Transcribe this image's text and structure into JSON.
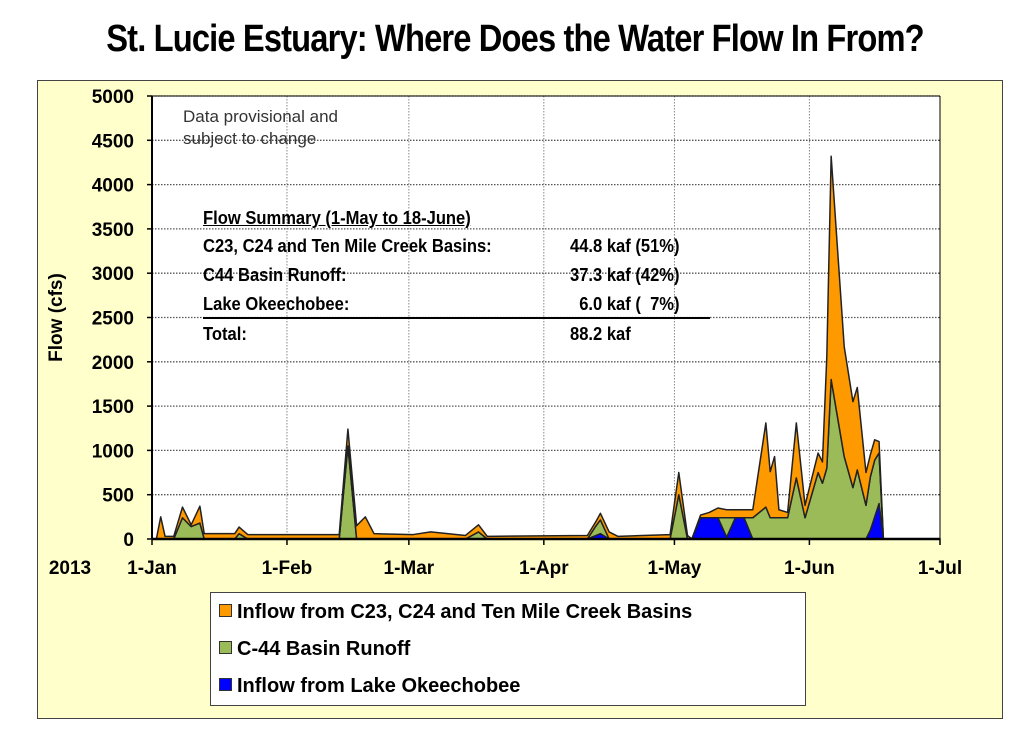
{
  "title": "St. Lucie Estuary: Where Does the Water Flow In From?",
  "note": [
    "Data provisional and",
    "subject to change"
  ],
  "summary": {
    "heading": "Flow Summary (1-May to 18-June)",
    "rows": [
      {
        "label": "C23, C24 and Ten Mile Creek Basins:",
        "value": "44.8 kaf (51%)"
      },
      {
        "label": "C44 Basin Runoff:",
        "value": "37.3 kaf (42%)"
      },
      {
        "label": "Lake Okeechobee:",
        "value": "  6.0 kaf (  7%)"
      },
      {
        "label": "Total:",
        "value": "88.2 kaf"
      }
    ]
  },
  "chart_data": {
    "type": "area",
    "stacked": true,
    "title": "St. Lucie Estuary: Where Does the Water Flow In From?",
    "xlabel": "2013",
    "ylabel": "Flow (cfs)",
    "ylim": [
      0,
      5000
    ],
    "yticks": [
      "0",
      "500",
      "1000",
      "1500",
      "2000",
      "2500",
      "3000",
      "3500",
      "4000",
      "4500",
      "5000"
    ],
    "xticks": [
      {
        "date": "2013-01-01",
        "label": "1-Jan"
      },
      {
        "date": "2013-02-01",
        "label": "1-Feb"
      },
      {
        "date": "2013-03-01",
        "label": "1-Mar"
      },
      {
        "date": "2013-04-01",
        "label": "1-Apr"
      },
      {
        "date": "2013-05-01",
        "label": "1-May"
      },
      {
        "date": "2013-06-01",
        "label": "1-Jun"
      },
      {
        "date": "2013-07-01",
        "label": "1-Jul"
      }
    ],
    "xlim": [
      "2013-01-01",
      "2013-07-01"
    ],
    "grid": true,
    "legend_position": "bottom",
    "x": [
      "2013-01-01",
      "2013-01-02",
      "2013-01-03",
      "2013-01-04",
      "2013-01-06",
      "2013-01-08",
      "2013-01-10",
      "2013-01-12",
      "2013-01-13",
      "2013-01-20",
      "2013-01-21",
      "2013-01-23",
      "2013-02-13",
      "2013-02-15",
      "2013-02-17",
      "2013-02-19",
      "2013-02-21",
      "2013-03-02",
      "2013-03-06",
      "2013-03-14",
      "2013-03-17",
      "2013-03-19",
      "2013-04-11",
      "2013-04-13",
      "2013-04-14",
      "2013-04-16",
      "2013-04-18",
      "2013-04-30",
      "2013-05-02",
      "2013-05-04",
      "2013-05-05",
      "2013-05-07",
      "2013-05-09",
      "2013-05-11",
      "2013-05-13",
      "2013-05-15",
      "2013-05-17",
      "2013-05-19",
      "2013-05-22",
      "2013-05-23",
      "2013-05-24",
      "2013-05-25",
      "2013-05-27",
      "2013-05-29",
      "2013-05-31",
      "2013-06-03",
      "2013-06-04",
      "2013-06-05",
      "2013-06-06",
      "2013-06-09",
      "2013-06-11",
      "2013-06-12",
      "2013-06-14",
      "2013-06-15",
      "2013-06-16",
      "2013-06-17",
      "2013-06-18",
      "2013-07-01"
    ],
    "series": [
      {
        "name": "Inflow from Lake Okeechobee",
        "color": "#0000FF",
        "values": [
          0,
          0,
          0,
          0,
          0,
          0,
          0,
          0,
          0,
          0,
          0,
          0,
          0,
          0,
          0,
          0,
          0,
          0,
          0,
          0,
          0,
          0,
          0,
          40,
          60,
          0,
          0,
          0,
          0,
          0,
          0,
          240,
          240,
          240,
          20,
          240,
          240,
          0,
          0,
          0,
          0,
          0,
          0,
          0,
          0,
          0,
          0,
          0,
          0,
          0,
          0,
          0,
          0,
          100,
          250,
          400,
          0,
          0
        ]
      },
      {
        "name": "C-44 Basin Runoff",
        "color": "#9BBB59",
        "values": [
          0,
          0,
          0,
          0,
          0,
          240,
          140,
          180,
          0,
          0,
          60,
          0,
          0,
          1050,
          0,
          0,
          0,
          0,
          0,
          0,
          80,
          0,
          0,
          110,
          155,
          0,
          0,
          0,
          500,
          0,
          0,
          0,
          0,
          0,
          220,
          0,
          0,
          240,
          360,
          240,
          240,
          240,
          240,
          690,
          240,
          750,
          630,
          800,
          1800,
          930,
          580,
          780,
          380,
          600,
          640,
          570,
          0,
          0
        ]
      },
      {
        "name": "Inflow from C23, C24 and Ten Mile Creek Basins",
        "color": "#FF9900",
        "values": [
          0,
          0,
          250,
          30,
          30,
          120,
          20,
          190,
          60,
          60,
          75,
          50,
          50,
          190,
          150,
          250,
          60,
          50,
          80,
          40,
          80,
          30,
          40,
          50,
          75,
          80,
          30,
          50,
          250,
          40,
          0,
          30,
          60,
          110,
          90,
          90,
          90,
          90,
          950,
          520,
          690,
          90,
          60,
          620,
          140,
          220,
          240,
          1260,
          2520,
          1240,
          970,
          930,
          370,
          250,
          230,
          130,
          0,
          0
        ]
      }
    ]
  },
  "legend": [
    {
      "label": "Inflow from C23, C24 and Ten Mile Creek Basins",
      "color": "#FF9900"
    },
    {
      "label": "C-44 Basin Runoff",
      "color": "#9BBB59"
    },
    {
      "label": "Inflow from Lake Okeechobee",
      "color": "#0000FF"
    }
  ],
  "colors": {
    "panel_bg": "#FFFFCC",
    "plot_bg": "#FFFFFF"
  }
}
